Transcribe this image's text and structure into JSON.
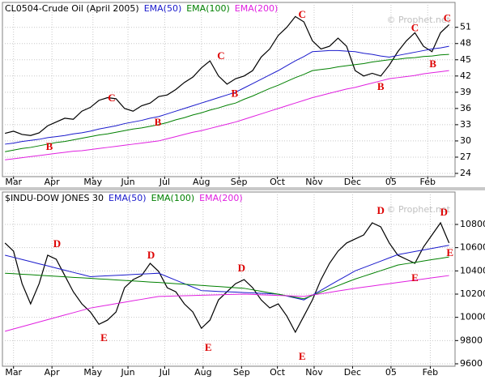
{
  "chart_data": [
    {
      "type": "line",
      "watermark": "© Prophet.net",
      "x": [
        0,
        1,
        2,
        3,
        4,
        5,
        6,
        7,
        8,
        9,
        10,
        11,
        12,
        13,
        14,
        15,
        16,
        17,
        18,
        19,
        20,
        21,
        22,
        23,
        24,
        25,
        26,
        27,
        28,
        29,
        30,
        31,
        32,
        33,
        34,
        35,
        36,
        37,
        38,
        39,
        40,
        41,
        42,
        43,
        44,
        45,
        46,
        47,
        48,
        49,
        50,
        51,
        52
      ],
      "xlim": [
        -0.3,
        52.7
      ],
      "xticks": [
        {
          "value": 1,
          "label": "Mar"
        },
        {
          "value": 5.5,
          "label": "Apr"
        },
        {
          "value": 10.3,
          "label": "May"
        },
        {
          "value": 14.4,
          "label": "Jun"
        },
        {
          "value": 18.7,
          "label": "Jul"
        },
        {
          "value": 23,
          "label": "Aug"
        },
        {
          "value": 27.4,
          "label": "Sep"
        },
        {
          "value": 31.9,
          "label": "Oct"
        },
        {
          "value": 36.2,
          "label": "Nov"
        },
        {
          "value": 40.7,
          "label": "Dec"
        },
        {
          "value": 45.2,
          "label": "05"
        },
        {
          "value": 49.5,
          "label": "Feb"
        }
      ],
      "ylim": [
        23.4,
        55.6
      ],
      "yticks": [
        24,
        27,
        30,
        33,
        36,
        39,
        42,
        45,
        48,
        51
      ],
      "grid": true,
      "series": [
        {
          "name": "CL0504-Crude Oil (April 2005)",
          "color": "#000000",
          "values": [
            31.4,
            31.8,
            31.2,
            31.0,
            31.5,
            32.8,
            33.5,
            34.2,
            34.0,
            35.5,
            36.2,
            37.5,
            38.0,
            37.8,
            36.0,
            35.5,
            36.5,
            37.0,
            38.2,
            38.5,
            39.5,
            40.8,
            41.8,
            43.5,
            44.8,
            42.0,
            40.5,
            41.5,
            42.0,
            43.0,
            45.5,
            47.0,
            49.5,
            51.0,
            53.0,
            52.0,
            48.5,
            47.0,
            47.5,
            49.0,
            47.5,
            43.0,
            42.0,
            42.5,
            42.0,
            44.0,
            46.5,
            48.5,
            50.0,
            47.5,
            46.5,
            50.0,
            51.5
          ]
        },
        {
          "name": "EMA(50)",
          "color": "#1a1acc",
          "values": [
            29.4,
            29.6,
            29.9,
            30.1,
            30.3,
            30.6,
            30.8,
            31.0,
            31.3,
            31.5,
            31.8,
            32.2,
            32.5,
            32.8,
            33.2,
            33.5,
            33.8,
            34.2,
            34.5,
            35.0,
            35.5,
            36.0,
            36.5,
            37.0,
            37.5,
            38.0,
            38.5,
            39.0,
            39.8,
            40.6,
            41.4,
            42.2,
            43.0,
            43.9,
            44.8,
            45.6,
            46.5,
            46.6,
            46.7,
            46.7,
            46.6,
            46.5,
            46.2,
            46.0,
            45.7,
            45.5,
            45.8,
            46.1,
            46.4,
            46.7,
            47.0,
            47.2,
            47.5
          ]
        },
        {
          "name": "EMA(100)",
          "color": "#008000",
          "values": [
            28.0,
            28.3,
            28.6,
            28.8,
            29.1,
            29.4,
            29.7,
            29.9,
            30.2,
            30.5,
            30.8,
            31.1,
            31.3,
            31.6,
            31.9,
            32.2,
            32.4,
            32.7,
            33.0,
            33.4,
            33.9,
            34.3,
            34.8,
            35.2,
            35.7,
            36.1,
            36.6,
            37.0,
            37.7,
            38.3,
            39.0,
            39.7,
            40.3,
            41.0,
            41.7,
            42.3,
            43.0,
            43.2,
            43.4,
            43.7,
            43.9,
            44.1,
            44.3,
            44.6,
            44.8,
            45.0,
            45.1,
            45.3,
            45.4,
            45.6,
            45.7,
            45.9,
            46.0
          ]
        },
        {
          "name": "EMA(200)",
          "color": "#e020e0",
          "values": [
            26.5,
            26.7,
            26.9,
            27.1,
            27.3,
            27.5,
            27.7,
            27.9,
            28.1,
            28.2,
            28.4,
            28.6,
            28.8,
            29.0,
            29.2,
            29.4,
            29.6,
            29.8,
            30.0,
            30.4,
            30.8,
            31.2,
            31.6,
            31.9,
            32.3,
            32.7,
            33.1,
            33.5,
            34.0,
            34.5,
            35.0,
            35.5,
            36.0,
            36.5,
            37.0,
            37.5,
            38.0,
            38.4,
            38.8,
            39.2,
            39.6,
            39.9,
            40.3,
            40.7,
            41.1,
            41.5,
            41.7,
            41.9,
            42.1,
            42.4,
            42.6,
            42.8,
            43.0
          ]
        }
      ],
      "annotations": [
        {
          "label": "B",
          "x": 5.2,
          "y": 28.8
        },
        {
          "label": "C",
          "x": 12.5,
          "y": 37.8
        },
        {
          "label": "B",
          "x": 17.9,
          "y": 33.3
        },
        {
          "label": "C",
          "x": 25.3,
          "y": 45.6
        },
        {
          "label": "B",
          "x": 26.9,
          "y": 38.6
        },
        {
          "label": "C",
          "x": 34.8,
          "y": 53.2
        },
        {
          "label": "B",
          "x": 44,
          "y": 39.9
        },
        {
          "label": "C",
          "x": 48,
          "y": 50.7
        },
        {
          "label": "B",
          "x": 50.1,
          "y": 44.1
        },
        {
          "label": "C",
          "x": 51.8,
          "y": 52.5
        }
      ]
    },
    {
      "type": "line",
      "watermark": "© Prophet.net",
      "x": [
        0,
        1,
        2,
        3,
        4,
        5,
        6,
        7,
        8,
        9,
        10,
        11,
        12,
        13,
        14,
        15,
        16,
        17,
        18,
        19,
        20,
        21,
        22,
        23,
        24,
        25,
        26,
        27,
        28,
        29,
        30,
        31,
        32,
        33,
        34,
        35,
        36,
        37,
        38,
        39,
        40,
        41,
        42,
        43,
        44,
        45,
        46,
        47,
        48,
        49,
        50,
        51,
        52
      ],
      "xlim": [
        -0.3,
        52.7
      ],
      "xticks": [
        {
          "value": 1,
          "label": "Mar"
        },
        {
          "value": 5.5,
          "label": "Apr"
        },
        {
          "value": 10.3,
          "label": "May"
        },
        {
          "value": 14.4,
          "label": "Jun"
        },
        {
          "value": 18.7,
          "label": "Jul"
        },
        {
          "value": 23.2,
          "label": "Aug"
        },
        {
          "value": 27.7,
          "label": "Sep"
        },
        {
          "value": 31.9,
          "label": "Oct"
        },
        {
          "value": 36.2,
          "label": "Nov"
        },
        {
          "value": 40.7,
          "label": "Dec"
        },
        {
          "value": 45.2,
          "label": "05"
        },
        {
          "value": 49.8,
          "label": "Feb"
        }
      ],
      "ylim": [
        9579,
        11079
      ],
      "yticks": [
        9600,
        9800,
        10000,
        10200,
        10400,
        10600,
        10800
      ],
      "grid": true,
      "series": [
        {
          "name": "$INDU-DOW JONES 30",
          "color": "#000000",
          "values": [
            10640,
            10570,
            10290,
            10116,
            10290,
            10535,
            10500,
            10360,
            10220,
            10116,
            10046,
            9940,
            9976,
            10046,
            10255,
            10325,
            10360,
            10465,
            10395,
            10255,
            10220,
            10116,
            10046,
            9906,
            9976,
            10150,
            10220,
            10290,
            10325,
            10255,
            10150,
            10081,
            10116,
            10011,
            9872,
            10011,
            10150,
            10325,
            10465,
            10570,
            10640,
            10675,
            10709,
            10814,
            10779,
            10640,
            10535,
            10500,
            10465,
            10605,
            10709,
            10814,
            10640
          ]
        },
        {
          "name": "EMA(50)",
          "color": "#1a1acc",
          "values": [
            10535,
            10517,
            10498,
            10480,
            10461,
            10443,
            10424,
            10406,
            10387,
            10369,
            10350,
            10354,
            10358,
            10361,
            10365,
            10369,
            10373,
            10376,
            10380,
            10350,
            10320,
            10290,
            10260,
            10230,
            10227,
            10223,
            10220,
            10217,
            10213,
            10210,
            10207,
            10203,
            10200,
            10183,
            10167,
            10150,
            10192,
            10233,
            10275,
            10317,
            10358,
            10400,
            10428,
            10456,
            10484,
            10512,
            10540,
            10553,
            10567,
            10580,
            10593,
            10607,
            10620
          ]
        },
        {
          "name": "EMA(100)",
          "color": "#008000",
          "values": [
            10380,
            10376,
            10371,
            10367,
            10362,
            10358,
            10353,
            10349,
            10344,
            10340,
            10336,
            10331,
            10327,
            10322,
            10318,
            10313,
            10309,
            10304,
            10300,
            10295,
            10290,
            10285,
            10280,
            10275,
            10270,
            10265,
            10260,
            10255,
            10250,
            10237,
            10224,
            10211,
            10199,
            10186,
            10173,
            10160,
            10188,
            10217,
            10245,
            10273,
            10302,
            10330,
            10354,
            10378,
            10402,
            10426,
            10450,
            10462,
            10473,
            10485,
            10497,
            10508,
            10520
          ]
        },
        {
          "name": "EMA(200)",
          "color": "#e020e0",
          "values": [
            9880,
            9900,
            9920,
            9940,
            9960,
            9980,
            10000,
            10020,
            10040,
            10060,
            10080,
            10093,
            10105,
            10118,
            10130,
            10143,
            10155,
            10168,
            10180,
            10182,
            10184,
            10186,
            10188,
            10190,
            10192,
            10194,
            10196,
            10198,
            10200,
            10197,
            10194,
            10191,
            10189,
            10186,
            10183,
            10180,
            10192,
            10203,
            10215,
            10227,
            10238,
            10250,
            10260,
            10270,
            10280,
            10290,
            10300,
            10310,
            10320,
            10330,
            10340,
            10350,
            10360
          ]
        }
      ],
      "annotations": [
        {
          "label": "D",
          "x": 6.1,
          "y": 10626
        },
        {
          "label": "E",
          "x": 11.6,
          "y": 9816
        },
        {
          "label": "D",
          "x": 17.1,
          "y": 10528
        },
        {
          "label": "E",
          "x": 23.8,
          "y": 9732
        },
        {
          "label": "D",
          "x": 27.7,
          "y": 10416
        },
        {
          "label": "E",
          "x": 34.8,
          "y": 9655
        },
        {
          "label": "D",
          "x": 44,
          "y": 10912
        },
        {
          "label": "E",
          "x": 48,
          "y": 10332
        },
        {
          "label": "D",
          "x": 51.4,
          "y": 10898
        },
        {
          "label": "E",
          "x": 52.1,
          "y": 10549
        }
      ]
    }
  ]
}
